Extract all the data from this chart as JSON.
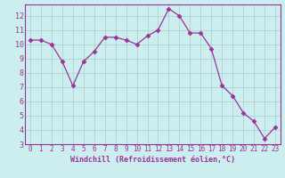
{
  "x": [
    0,
    1,
    2,
    3,
    4,
    5,
    6,
    7,
    8,
    9,
    10,
    11,
    12,
    13,
    14,
    15,
    16,
    17,
    18,
    19,
    20,
    21,
    22,
    23
  ],
  "y": [
    10.3,
    10.3,
    10.0,
    8.8,
    7.1,
    8.8,
    9.5,
    10.5,
    10.5,
    10.3,
    10.0,
    10.6,
    11.0,
    12.5,
    12.0,
    10.8,
    10.8,
    9.7,
    7.1,
    6.4,
    5.2,
    4.6,
    3.4,
    4.2
  ],
  "line_color": "#993399",
  "marker": "D",
  "marker_size": 2.5,
  "bg_color": "#cceeee",
  "grid_color": "#aacccc",
  "xlabel": "Windchill (Refroidissement éolien,°C)",
  "xlim": [
    -0.5,
    23.5
  ],
  "ylim": [
    3,
    12.8
  ],
  "yticks": [
    3,
    4,
    5,
    6,
    7,
    8,
    9,
    10,
    11,
    12
  ],
  "xticks": [
    0,
    1,
    2,
    3,
    4,
    5,
    6,
    7,
    8,
    9,
    10,
    11,
    12,
    13,
    14,
    15,
    16,
    17,
    18,
    19,
    20,
    21,
    22,
    23
  ],
  "tick_color": "#993399",
  "label_color": "#993399",
  "spine_color": "#993399",
  "tick_fontsize": 5.5,
  "xlabel_fontsize": 6.0
}
